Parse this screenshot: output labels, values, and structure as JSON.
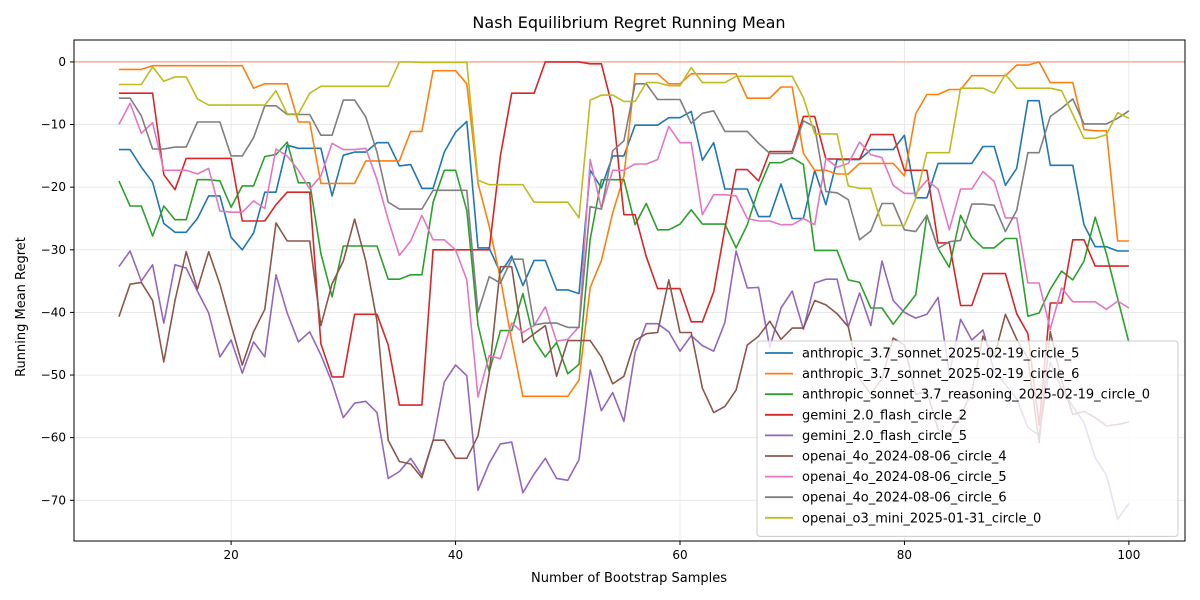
{
  "chart_data": {
    "type": "line",
    "title": "Nash Equilibrium Regret Running Mean",
    "xlabel": "Number of Bootstrap Samples",
    "ylabel": "Running Mean Regret",
    "xlim": [
      6,
      105
    ],
    "ylim": [
      -76.5,
      3.5
    ],
    "xticks": [
      20,
      40,
      60,
      80,
      100
    ],
    "yticks": [
      0,
      -10,
      -20,
      -30,
      -40,
      -50,
      -60,
      -70
    ],
    "grid": true,
    "legend_position": "lower-right",
    "reference_line": {
      "y": 0,
      "color": "#f4a69a"
    },
    "x": [
      10,
      11,
      12,
      13,
      14,
      15,
      16,
      17,
      18,
      19,
      20,
      21,
      22,
      23,
      24,
      25,
      26,
      27,
      28,
      29,
      30,
      31,
      32,
      33,
      34,
      35,
      36,
      37,
      38,
      39,
      40,
      41,
      42,
      43,
      44,
      45,
      46,
      47,
      48,
      49,
      50,
      51,
      52,
      53,
      54,
      55,
      56,
      57,
      58,
      59,
      60,
      61,
      62,
      63,
      64,
      65,
      66,
      67,
      68,
      69,
      70,
      71,
      72,
      73,
      74,
      75,
      76,
      77,
      78,
      79,
      80,
      81,
      82,
      83,
      84,
      85,
      86,
      87,
      88,
      89,
      90,
      91,
      92,
      93,
      94,
      95,
      96,
      97,
      98,
      99,
      100
    ],
    "series": [
      {
        "name": "anthropic_3.7_sonnet_2025-02-19_circle_5",
        "color": "#1f77b4",
        "values": [
          -14,
          -14,
          -16.8,
          -19.2,
          -25.8,
          -27.2,
          -27.2,
          -25,
          -21.4,
          -21.4,
          -28,
          -30,
          -27.3,
          -20.8,
          -20.8,
          -13.3,
          -13.8,
          -13.8,
          -13.8,
          -21.4,
          -14.9,
          -14.4,
          -14.4,
          -12.9,
          -12.9,
          -16.6,
          -16.4,
          -20.2,
          -20.2,
          -14.4,
          -11.2,
          -9.5,
          -29.7,
          -29.7,
          -33.7,
          -31,
          -35.7,
          -31.7,
          -31.7,
          -36.4,
          -36.4,
          -37,
          -17.3,
          -20.1,
          -15,
          -15,
          -10.1,
          -10.1,
          -10.1,
          -8.9,
          -8.9,
          -7.9,
          -15.7,
          -12.9,
          -20.3,
          -20.3,
          -20.3,
          -24.7,
          -24.7,
          -19.5,
          -25,
          -25,
          -17.3,
          -22.8,
          -15.6,
          -15.6,
          -15.6,
          -14,
          -14,
          -14,
          -11.7,
          -21.7,
          -21.7,
          -16.2,
          -16.2,
          -16.2,
          -16.2,
          -13.5,
          -13.5,
          -19.7,
          -17,
          -6.2,
          -6.2,
          -16.5,
          -16.5,
          -16.5,
          -26,
          -29.5,
          -29.5,
          -30.2,
          -30.2
        ]
      },
      {
        "name": "anthropic_3.7_sonnet_2025-02-19_circle_6",
        "color": "#ff7f0e",
        "values": [
          -1.2,
          -1.2,
          -1.2,
          -0.6,
          -0.6,
          -0.6,
          -0.6,
          -0.6,
          -0.6,
          -0.6,
          -0.6,
          -0.6,
          -4.2,
          -3.5,
          -3.5,
          -3.5,
          -9.6,
          -9.6,
          -19.4,
          -19.4,
          -19.4,
          -19.4,
          -15.8,
          -15.8,
          -15.8,
          -15.8,
          -11.1,
          -11.1,
          -1.4,
          -1.4,
          -1.4,
          -3.5,
          -19.4,
          -26.2,
          -34.6,
          -44.5,
          -53.4,
          -53.4,
          -53.4,
          -53.4,
          -53.4,
          -50.8,
          -36,
          -31.7,
          -24.1,
          -18.3,
          -1.9,
          -1.9,
          -1.9,
          -3.5,
          -3.5,
          -1.9,
          -1.9,
          -1.9,
          -1.9,
          -1.9,
          -5.8,
          -5.8,
          -5.8,
          -4,
          -4,
          -14.6,
          -17.3,
          -17.3,
          -17.9,
          -17.9,
          -16.2,
          -16.2,
          -16.2,
          -16.2,
          -18.2,
          -8.3,
          -5.2,
          -5.2,
          -4.4,
          -4.4,
          -2.2,
          -2.2,
          -2.2,
          -2.2,
          -0.5,
          -0.5,
          0,
          -3.3,
          -3.3,
          -3.3,
          -10.8,
          -11,
          -11,
          -28.6,
          -28.6
        ]
      },
      {
        "name": "anthropic_sonnet_3.7_reasoning_2025-02-19_circle_0",
        "color": "#2ca02c",
        "values": [
          -19,
          -23,
          -23,
          -27.8,
          -23,
          -25.2,
          -25.2,
          -18.8,
          -18.8,
          -19,
          -23.2,
          -19.8,
          -19.8,
          -15.1,
          -14.8,
          -12.8,
          -19.3,
          -19.3,
          -30.6,
          -37.5,
          -29.4,
          -29.4,
          -29.4,
          -29.4,
          -34.7,
          -34.7,
          -34,
          -34,
          -22.4,
          -17.3,
          -17.3,
          -23.7,
          -42,
          -49.5,
          -42.9,
          -42.9,
          -37,
          -44.4,
          -47.1,
          -44.8,
          -49.8,
          -48.3,
          -28.3,
          -18.8,
          -18.8,
          -18.8,
          -26,
          -22.6,
          -26.8,
          -26.8,
          -25.9,
          -23.6,
          -25.9,
          -25.9,
          -25.9,
          -29.7,
          -26,
          -20.3,
          -16.1,
          -16.1,
          -15.3,
          -16.4,
          -30.1,
          -30.1,
          -30.1,
          -34.8,
          -35.2,
          -39.3,
          -39.3,
          -41.9,
          -39.5,
          -37.2,
          -24.5,
          -29.8,
          -32.8,
          -24.5,
          -28,
          -29.7,
          -29.7,
          -28.2,
          -28.2,
          -40.6,
          -40.1,
          -36.3,
          -33.4,
          -34.8,
          -31.8,
          -24.8,
          -30.6,
          -37.8,
          -44.8
        ]
      },
      {
        "name": "gemini_2.0_flash_circle_2",
        "color": "#d62728",
        "values": [
          -5,
          -5,
          -5,
          -5,
          -18,
          -20.4,
          -15.4,
          -15.4,
          -15.4,
          -15.4,
          -15.4,
          -25.4,
          -25.4,
          -25.4,
          -22.8,
          -20.8,
          -20.8,
          -20.8,
          -45,
          -50.3,
          -50.3,
          -40.3,
          -40.3,
          -40.3,
          -45.2,
          -54.8,
          -54.8,
          -54.8,
          -30,
          -30,
          -30,
          -30,
          -30,
          -30,
          -15,
          -5,
          -5,
          -5,
          0,
          0,
          0,
          0,
          -0.3,
          -0.3,
          -7.4,
          -24.4,
          -24.4,
          -31.1,
          -36.2,
          -36.2,
          -36.2,
          -41.5,
          -41.5,
          -36.7,
          -26.6,
          -17.2,
          -17.2,
          -19,
          -14.3,
          -14.3,
          -14.3,
          -8.7,
          -8.7,
          -15.5,
          -15.5,
          -15.5,
          -15.5,
          -11.6,
          -11.6,
          -11.6,
          -17.3,
          -17.3,
          -17.3,
          -28.9,
          -28.9,
          -38.9,
          -38.9,
          -33.8,
          -33.8,
          -33.8,
          -40.2,
          -43.4,
          -58,
          -38.5,
          -38.5,
          -28.4,
          -28.4,
          -32.6,
          -32.6,
          -32.6,
          -32.6
        ]
      },
      {
        "name": "gemini_2.0_flash_circle_5",
        "color": "#9467bd",
        "values": [
          -32.7,
          -30.2,
          -35,
          -32.4,
          -41.7,
          -32.4,
          -32.9,
          -36.6,
          -40.1,
          -47.1,
          -44.4,
          -49.7,
          -44.7,
          -47.1,
          -34,
          -40.1,
          -44.7,
          -43.1,
          -46.8,
          -51.2,
          -56.8,
          -54.5,
          -54.2,
          -56,
          -66.5,
          -65.4,
          -63.3,
          -66,
          -60.5,
          -51.1,
          -48.4,
          -50.1,
          -68.4,
          -64.1,
          -61,
          -60.7,
          -68.8,
          -65.8,
          -63.3,
          -66.5,
          -66.8,
          -63.5,
          -49.2,
          -55.7,
          -52.8,
          -57.4,
          -46.4,
          -41.8,
          -41.8,
          -43.1,
          -46.2,
          -43.7,
          -45.3,
          -46.2,
          -41.6,
          -30.2,
          -36.1,
          -36,
          -45.6,
          -39.3,
          -36.6,
          -42.7,
          -35.3,
          -34.7,
          -34.7,
          -42.3,
          -36.9,
          -42.1,
          -31.8,
          -38.1,
          -40,
          -40.9,
          -40.3,
          -37.6,
          -49.9,
          -41.1,
          -44.4,
          -42.8,
          -49.4,
          -51.5,
          -53.8,
          -58.4,
          -59.6,
          -48,
          -52.2,
          -55,
          -57.6,
          -63.2,
          -66,
          -73,
          -70.5
        ]
      },
      {
        "name": "openai_4o_2024-08-06_circle_4",
        "color": "#8c564b",
        "values": [
          -40.7,
          -35.5,
          -35.2,
          -38.1,
          -47.9,
          -38.1,
          -30.3,
          -36.3,
          -30.3,
          -35.5,
          -42,
          -48.4,
          -43.1,
          -39.5,
          -25.7,
          -28.6,
          -28.6,
          -28.6,
          -42.1,
          -35.4,
          -31.8,
          -25.1,
          -31.8,
          -41.4,
          -60.4,
          -63.8,
          -64.2,
          -66.4,
          -60.4,
          -60.4,
          -63.3,
          -63.3,
          -59.7,
          -49.8,
          -32.7,
          -32.7,
          -44.8,
          -43.4,
          -42.1,
          -50.2,
          -44.5,
          -44.5,
          -44.5,
          -47.1,
          -51.4,
          -50.2,
          -44.5,
          -43.4,
          -43.2,
          -34.8,
          -43.2,
          -43.2,
          -52.1,
          -56,
          -55,
          -52.4,
          -45.2,
          -43.8,
          -41.4,
          -44.3,
          -42.5,
          -42.5,
          -38.1,
          -38.8,
          -40.2,
          -42.3,
          -50.6,
          -53,
          -50.6,
          -44.1,
          -45.2,
          -53.1,
          -52.6,
          -58.7,
          -59.5,
          -56.4,
          -52.7,
          -43.8,
          -47.1,
          -40.3,
          -44.3,
          -47.3,
          -60.8,
          -43.1,
          -50.9,
          -56.3,
          -55.8,
          -56.8,
          -58.1,
          -57.9,
          -57.5
        ]
      },
      {
        "name": "openai_4o_2024-08-06_circle_5",
        "color": "#e377c2",
        "values": [
          -10,
          -6.6,
          -11.4,
          -9.7,
          -17.3,
          -17.3,
          -17.3,
          -17.9,
          -17,
          -23.8,
          -24,
          -24,
          -22.2,
          -23.4,
          -13.9,
          -15,
          -17.3,
          -20.3,
          -18.2,
          -13,
          -14,
          -14,
          -13.8,
          -18.8,
          -25.2,
          -30.9,
          -28.6,
          -24.5,
          -28.4,
          -28.4,
          -30,
          -34.8,
          -53.5,
          -46.9,
          -47.4,
          -41.7,
          -43.2,
          -42.1,
          -39.1,
          -44.6,
          -44.3,
          -42.3,
          -15.6,
          -23.4,
          -17.3,
          -17.3,
          -16.3,
          -16.3,
          -15.6,
          -10.3,
          -12.9,
          -12.9,
          -24.4,
          -21.2,
          -21.2,
          -21.4,
          -25,
          -25.4,
          -25.4,
          -26,
          -26,
          -25,
          -26,
          -15.4,
          -16.8,
          -16.2,
          -12.8,
          -14.8,
          -15.3,
          -19.7,
          -21,
          -21,
          -18.9,
          -20.3,
          -26.8,
          -20.3,
          -20.3,
          -17.5,
          -19.1,
          -24.9,
          -24.9,
          -35.3,
          -35.3,
          -42.7,
          -36.1,
          -38.3,
          -38.3,
          -38.3,
          -39.5,
          -38.2,
          -39.3
        ]
      },
      {
        "name": "openai_4o_2024-08-06_circle_6",
        "color": "#7f7f7f",
        "values": [
          -5.8,
          -5.8,
          -8.6,
          -13.9,
          -13.9,
          -13.6,
          -13.6,
          -9.6,
          -9.6,
          -9.6,
          -15,
          -15,
          -12.1,
          -7,
          -7,
          -8.4,
          -8.4,
          -8.4,
          -11.7,
          -11.7,
          -6.1,
          -6.1,
          -8.8,
          -14.4,
          -22.4,
          -23.5,
          -23.5,
          -23.5,
          -20.5,
          -20.5,
          -20.5,
          -20.5,
          -40,
          -34.3,
          -35.3,
          -31.5,
          -31.5,
          -42,
          -41.7,
          -41.7,
          -42.4,
          -42.4,
          -23.1,
          -23.5,
          -14.2,
          -12.6,
          -3.5,
          -3.5,
          -6,
          -6,
          -6,
          -9.8,
          -8.2,
          -7.8,
          -11.1,
          -11.1,
          -11.1,
          -13,
          -14.6,
          -14.6,
          -14.6,
          -9.4,
          -10.4,
          -20.7,
          -20.9,
          -22,
          -28.4,
          -27,
          -22.6,
          -22.6,
          -26.8,
          -27.1,
          -24.5,
          -29.8,
          -28.7,
          -28.5,
          -22.7,
          -22.7,
          -22.9,
          -27.1,
          -23.7,
          -14.5,
          -14.5,
          -8.7,
          -7.4,
          -5.9,
          -9.9,
          -9.9,
          -9.9,
          -9,
          -7.8
        ]
      },
      {
        "name": "openai_o3_mini_2025-01-31_circle_0",
        "color": "#bcbd22",
        "values": [
          -3.6,
          -3.6,
          -3.6,
          -0.8,
          -3.1,
          -2.4,
          -2.4,
          -5.9,
          -6.9,
          -6.9,
          -6.9,
          -6.9,
          -6.9,
          -6.9,
          -4.6,
          -8.3,
          -8.3,
          -5,
          -3.9,
          -3.9,
          -3.9,
          -3.9,
          -3.9,
          -3.9,
          -3.9,
          0,
          0,
          -0.1,
          -0.1,
          -0.1,
          -0.1,
          -0.1,
          -18.9,
          -19.6,
          -19.6,
          -19.6,
          -19.6,
          -22.4,
          -22.4,
          -22.4,
          -22.4,
          -24.9,
          -6.1,
          -5.3,
          -5.3,
          -6.3,
          -6.3,
          -3.3,
          -3.3,
          -3.8,
          -3.8,
          -0.9,
          -3.3,
          -3.3,
          -3.3,
          -2.3,
          -2.3,
          -2.3,
          -2.3,
          -2.3,
          -2.3,
          -5.7,
          -11.5,
          -11.5,
          -11.5,
          -19.8,
          -20.2,
          -20.2,
          -26.1,
          -26.1,
          -26.1,
          -21.8,
          -14.5,
          -14.5,
          -14.5,
          -4.2,
          -4.2,
          -4.2,
          -5,
          -2,
          -4.2,
          -4.2,
          -4.2,
          -4.2,
          -4.6,
          -8.4,
          -12.2,
          -12.2,
          -11.6,
          -8.1,
          -9
        ]
      }
    ]
  }
}
